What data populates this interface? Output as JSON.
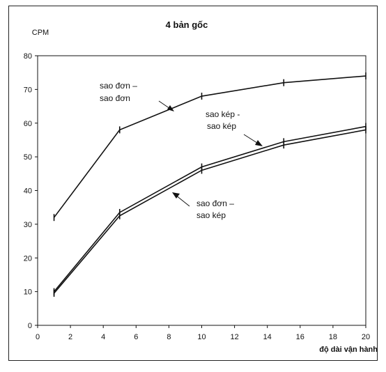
{
  "chart_data": {
    "type": "line",
    "title": "4 bản gốc",
    "ylabel": "CPM",
    "xlabel": "độ dài vận hành",
    "xlim": [
      0,
      20
    ],
    "ylim": [
      0,
      80
    ],
    "x_ticks": [
      0,
      2,
      4,
      6,
      8,
      10,
      12,
      14,
      16,
      18,
      20
    ],
    "y_ticks": [
      0,
      10,
      20,
      30,
      40,
      50,
      60,
      70,
      80
    ],
    "grid": false,
    "series": [
      {
        "name": "sao đơn – sao đơn",
        "x": [
          1,
          5,
          10,
          15,
          20
        ],
        "y": [
          32,
          58,
          68,
          72,
          74
        ]
      },
      {
        "name": "sao kép - sao kép",
        "x": [
          1,
          5,
          10,
          15,
          20
        ],
        "y": [
          10,
          33.5,
          47,
          54.5,
          59
        ]
      },
      {
        "name": "sao đơn – sao kép",
        "x": [
          1,
          5,
          10,
          15,
          20
        ],
        "y": [
          9.5,
          32.5,
          46,
          53.5,
          58
        ]
      }
    ],
    "annotations": [
      {
        "lines": [
          "sao đơn –",
          "sao đơn"
        ],
        "series": 0
      },
      {
        "lines": [
          "sao kép -",
          "sao kép"
        ],
        "series": 1
      },
      {
        "lines": [
          "sao đơn –",
          "sao kép"
        ],
        "series": 2
      }
    ]
  },
  "colors": {
    "line": "#111111",
    "axis": "#111111",
    "background": "#ffffff"
  }
}
